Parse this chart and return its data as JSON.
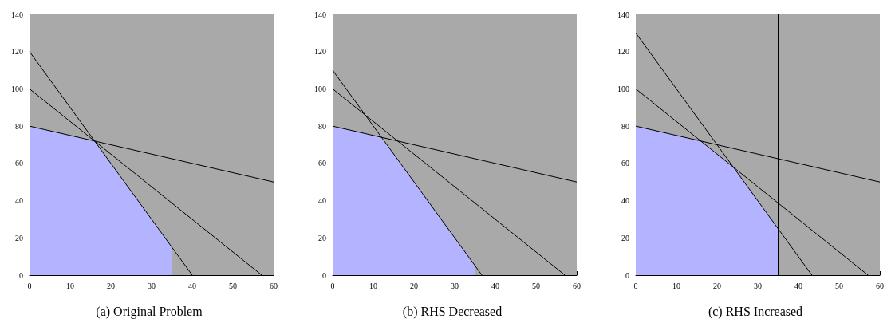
{
  "chart_data": [
    {
      "type": "line",
      "title": "(a) Original Problem",
      "xlim": [
        0,
        60
      ],
      "ylim": [
        0,
        140
      ],
      "xticks": [
        0,
        10,
        20,
        30,
        40,
        50,
        60
      ],
      "yticks": [
        0,
        20,
        40,
        60,
        80,
        100,
        120,
        140
      ],
      "marker": "none",
      "bands": [
        {
          "axis": "x",
          "from": 0,
          "to": 60,
          "color": "#a9a9a9"
        }
      ],
      "ref_lines": [
        {
          "axis": "x",
          "value": 35,
          "color": "#000000"
        }
      ],
      "series": [
        {
          "type": "area",
          "color": "#b3b3ff",
          "x": [
            0,
            16,
            35,
            35
          ],
          "values": [
            80,
            72,
            15,
            0
          ]
        },
        {
          "color": "#000000",
          "x": [
            0,
            60
          ],
          "values": [
            80,
            50
          ]
        },
        {
          "color": "#000000",
          "x": [
            0,
            57.1
          ],
          "values": [
            100,
            0
          ]
        },
        {
          "color": "#000000",
          "x": [
            0,
            40
          ],
          "values": [
            120,
            0
          ]
        }
      ]
    },
    {
      "type": "line",
      "title": "(b) RHS Decreased",
      "xlim": [
        0,
        60
      ],
      "ylim": [
        0,
        140
      ],
      "xticks": [
        0,
        10,
        20,
        30,
        40,
        50,
        60
      ],
      "yticks": [
        0,
        20,
        40,
        60,
        80,
        100,
        120,
        140
      ],
      "marker": "none",
      "bands": [
        {
          "axis": "x",
          "from": 0,
          "to": 60,
          "color": "#a9a9a9"
        }
      ],
      "ref_lines": [
        {
          "axis": "x",
          "value": 35,
          "color": "#000000"
        }
      ],
      "series": [
        {
          "type": "area",
          "color": "#b3b3ff",
          "x": [
            0,
            12,
            35,
            35
          ],
          "values": [
            80,
            74,
            5,
            0
          ]
        },
        {
          "color": "#000000",
          "x": [
            0,
            60
          ],
          "values": [
            80,
            50
          ]
        },
        {
          "color": "#000000",
          "x": [
            0,
            57.1
          ],
          "values": [
            100,
            0
          ]
        },
        {
          "color": "#000000",
          "x": [
            0,
            36.7
          ],
          "values": [
            110,
            0
          ]
        }
      ]
    },
    {
      "type": "line",
      "title": "(c) RHS Increased",
      "xlim": [
        0,
        60
      ],
      "ylim": [
        0,
        140
      ],
      "xticks": [
        0,
        10,
        20,
        30,
        40,
        50,
        60
      ],
      "yticks": [
        0,
        20,
        40,
        60,
        80,
        100,
        120,
        140
      ],
      "marker": "none",
      "bands": [
        {
          "axis": "x",
          "from": 0,
          "to": 60,
          "color": "#a9a9a9"
        }
      ],
      "ref_lines": [
        {
          "axis": "x",
          "value": 35,
          "color": "#000000"
        }
      ],
      "series": [
        {
          "type": "area",
          "color": "#b3b3ff",
          "x": [
            0,
            16,
            24,
            35,
            35
          ],
          "values": [
            80,
            72,
            58,
            25,
            0
          ]
        },
        {
          "color": "#000000",
          "x": [
            0,
            60
          ],
          "values": [
            80,
            50
          ]
        },
        {
          "color": "#000000",
          "x": [
            0,
            57.1
          ],
          "values": [
            100,
            0
          ]
        },
        {
          "color": "#000000",
          "x": [
            0,
            43.3
          ],
          "values": [
            130,
            0
          ]
        }
      ]
    }
  ]
}
